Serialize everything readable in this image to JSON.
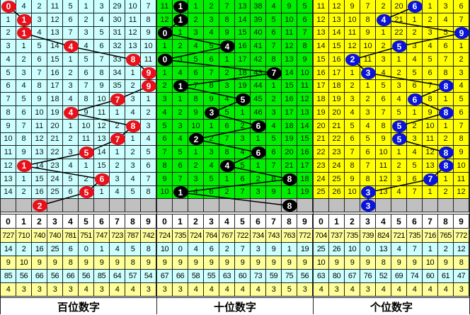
{
  "panels": [
    {
      "title": "百位数字",
      "bg": "#ccffff",
      "ball_color": "#e8101a",
      "rows": [
        [
          0,
          4,
          2,
          11,
          5,
          1,
          3,
          29,
          10,
          7
        ],
        [
          1,
          1,
          3,
          12,
          6,
          2,
          4,
          30,
          11,
          8
        ],
        [
          2,
          1,
          4,
          13,
          7,
          3,
          5,
          31,
          12,
          9
        ],
        [
          3,
          1,
          5,
          14,
          4,
          4,
          6,
          32,
          13,
          10
        ],
        [
          4,
          2,
          6,
          15,
          1,
          5,
          7,
          33,
          8,
          11
        ],
        [
          5,
          3,
          7,
          16,
          2,
          6,
          8,
          34,
          1,
          9
        ],
        [
          6,
          4,
          8,
          17,
          3,
          7,
          9,
          35,
          2,
          9
        ],
        [
          7,
          5,
          9,
          18,
          4,
          8,
          10,
          7,
          3,
          1
        ],
        [
          8,
          6,
          10,
          19,
          4,
          9,
          11,
          1,
          4,
          2
        ],
        [
          9,
          7,
          11,
          20,
          1,
          10,
          12,
          2,
          8,
          3
        ],
        [
          10,
          8,
          12,
          21,
          2,
          11,
          13,
          7,
          1,
          4
        ],
        [
          11,
          9,
          13,
          22,
          3,
          5,
          14,
          1,
          2,
          5
        ],
        [
          12,
          1,
          14,
          23,
          4,
          1,
          15,
          2,
          3,
          6
        ],
        [
          13,
          1,
          15,
          24,
          5,
          2,
          6,
          3,
          4,
          7
        ],
        [
          14,
          2,
          16,
          25,
          6,
          5,
          1,
          4,
          5,
          8
        ]
      ],
      "balls": [
        0,
        1,
        1,
        4,
        8,
        9,
        9,
        7,
        4,
        8,
        7,
        5,
        1,
        6,
        5
      ],
      "prediction": 2,
      "stats": [
        [
          727,
          710,
          740,
          740,
          781,
          751,
          747,
          723,
          787,
          742
        ],
        [
          14,
          2,
          16,
          25,
          6,
          0,
          1,
          4,
          5,
          8
        ],
        [
          9,
          10,
          9,
          9,
          8,
          9,
          9,
          9,
          8,
          9
        ],
        [
          85,
          56,
          66,
          56,
          66,
          56,
          85,
          64,
          57,
          54
        ],
        [
          4,
          3,
          3,
          3,
          3,
          4,
          3,
          4,
          4,
          3
        ]
      ]
    },
    {
      "title": "十位数字",
      "bg": "#00ee00",
      "ball_color": "#000000",
      "rows": [
        [
          11,
          1,
          1,
          2,
          7,
          13,
          38,
          4,
          9,
          5
        ],
        [
          12,
          1,
          2,
          3,
          8,
          14,
          39,
          5,
          10,
          6
        ],
        [
          0,
          1,
          3,
          4,
          9,
          15,
          40,
          6,
          11,
          7
        ],
        [
          1,
          2,
          4,
          5,
          4,
          16,
          41,
          7,
          12,
          8
        ],
        [
          0,
          3,
          5,
          6,
          1,
          17,
          42,
          8,
          13,
          9
        ],
        [
          1,
          4,
          6,
          7,
          2,
          18,
          43,
          7,
          14,
          10
        ],
        [
          2,
          1,
          7,
          8,
          3,
          19,
          44,
          1,
          15,
          11
        ],
        [
          3,
          1,
          8,
          9,
          4,
          5,
          45,
          2,
          16,
          12
        ],
        [
          4,
          2,
          9,
          3,
          5,
          1,
          46,
          3,
          17,
          13
        ],
        [
          5,
          3,
          10,
          1,
          6,
          2,
          6,
          4,
          18,
          14
        ],
        [
          6,
          4,
          2,
          2,
          7,
          3,
          1,
          5,
          19,
          15
        ],
        [
          7,
          5,
          1,
          3,
          8,
          4,
          6,
          6,
          20,
          16
        ],
        [
          8,
          6,
          2,
          4,
          4,
          5,
          1,
          7,
          21,
          17
        ],
        [
          9,
          7,
          3,
          5,
          1,
          6,
          2,
          8,
          8,
          18
        ],
        [
          10,
          1,
          4,
          6,
          2,
          7,
          3,
          9,
          1,
          19
        ]
      ],
      "balls": [
        1,
        1,
        0,
        4,
        0,
        7,
        1,
        5,
        3,
        6,
        2,
        6,
        4,
        8,
        1
      ],
      "prediction": 8,
      "stats": [
        [
          724,
          735,
          724,
          764,
          767,
          722,
          734,
          743,
          763,
          772
        ],
        [
          10,
          0,
          4,
          6,
          2,
          7,
          3,
          9,
          1,
          19
        ],
        [
          9,
          9,
          9,
          9,
          9,
          9,
          9,
          9,
          9,
          9
        ],
        [
          67,
          66,
          58,
          55,
          63,
          60,
          73,
          59,
          75,
          56
        ],
        [
          3,
          3,
          4,
          4,
          4,
          4,
          4,
          3,
          5,
          3
        ]
      ]
    },
    {
      "title": "个位数字",
      "bg": "#ffff00",
      "ball_color": "#0a14d8",
      "rows": [
        [
          11,
          12,
          9,
          7,
          2,
          20,
          6,
          1,
          3,
          6
        ],
        [
          12,
          13,
          10,
          8,
          4,
          21,
          1,
          2,
          4,
          7
        ],
        [
          13,
          14,
          11,
          9,
          1,
          22,
          2,
          3,
          5,
          9
        ],
        [
          14,
          15,
          12,
          10,
          2,
          5,
          3,
          4,
          6,
          1
        ],
        [
          15,
          16,
          2,
          11,
          3,
          1,
          4,
          5,
          7,
          2
        ],
        [
          16,
          17,
          1,
          3,
          4,
          2,
          5,
          6,
          8,
          3
        ],
        [
          17,
          18,
          2,
          1,
          5,
          3,
          6,
          7,
          8,
          4
        ],
        [
          18,
          19,
          3,
          2,
          6,
          4,
          6,
          8,
          1,
          5
        ],
        [
          19,
          20,
          4,
          3,
          7,
          5,
          1,
          9,
          8,
          6
        ],
        [
          20,
          21,
          5,
          4,
          8,
          5,
          2,
          10,
          1,
          7
        ],
        [
          21,
          22,
          6,
          5,
          9,
          5,
          3,
          11,
          2,
          8
        ],
        [
          22,
          23,
          7,
          6,
          10,
          1,
          4,
          12,
          8,
          9
        ],
        [
          23,
          24,
          8,
          7,
          11,
          2,
          5,
          13,
          8,
          10
        ],
        [
          24,
          25,
          9,
          8,
          12,
          3,
          6,
          7,
          1,
          11
        ],
        [
          25,
          26,
          10,
          3,
          13,
          4,
          7,
          1,
          2,
          12
        ]
      ],
      "balls": [
        6,
        4,
        9,
        5,
        2,
        3,
        8,
        6,
        8,
        5,
        5,
        8,
        8,
        7,
        3
      ],
      "prediction": 3,
      "stats": [
        [
          704,
          737,
          735,
          739,
          824,
          721,
          735,
          716,
          765,
          772
        ],
        [
          25,
          26,
          10,
          0,
          13,
          4,
          7,
          1,
          2,
          12
        ],
        [
          10,
          9,
          9,
          9,
          8,
          9,
          9,
          10,
          9,
          8
        ],
        [
          63,
          80,
          67,
          76,
          52,
          69,
          74,
          60,
          61,
          47
        ],
        [
          4,
          3,
          4,
          3,
          4,
          4,
          4,
          4,
          4,
          3
        ]
      ]
    }
  ],
  "digits": [
    "0",
    "1",
    "2",
    "3",
    "4",
    "5",
    "6",
    "7",
    "8",
    "9"
  ],
  "prediction_row_color": "#c0c0c0",
  "stats_row_colors": [
    "#ffff99",
    "#ccffff",
    "#ffff99",
    "#ccffff",
    "#ffff99"
  ]
}
